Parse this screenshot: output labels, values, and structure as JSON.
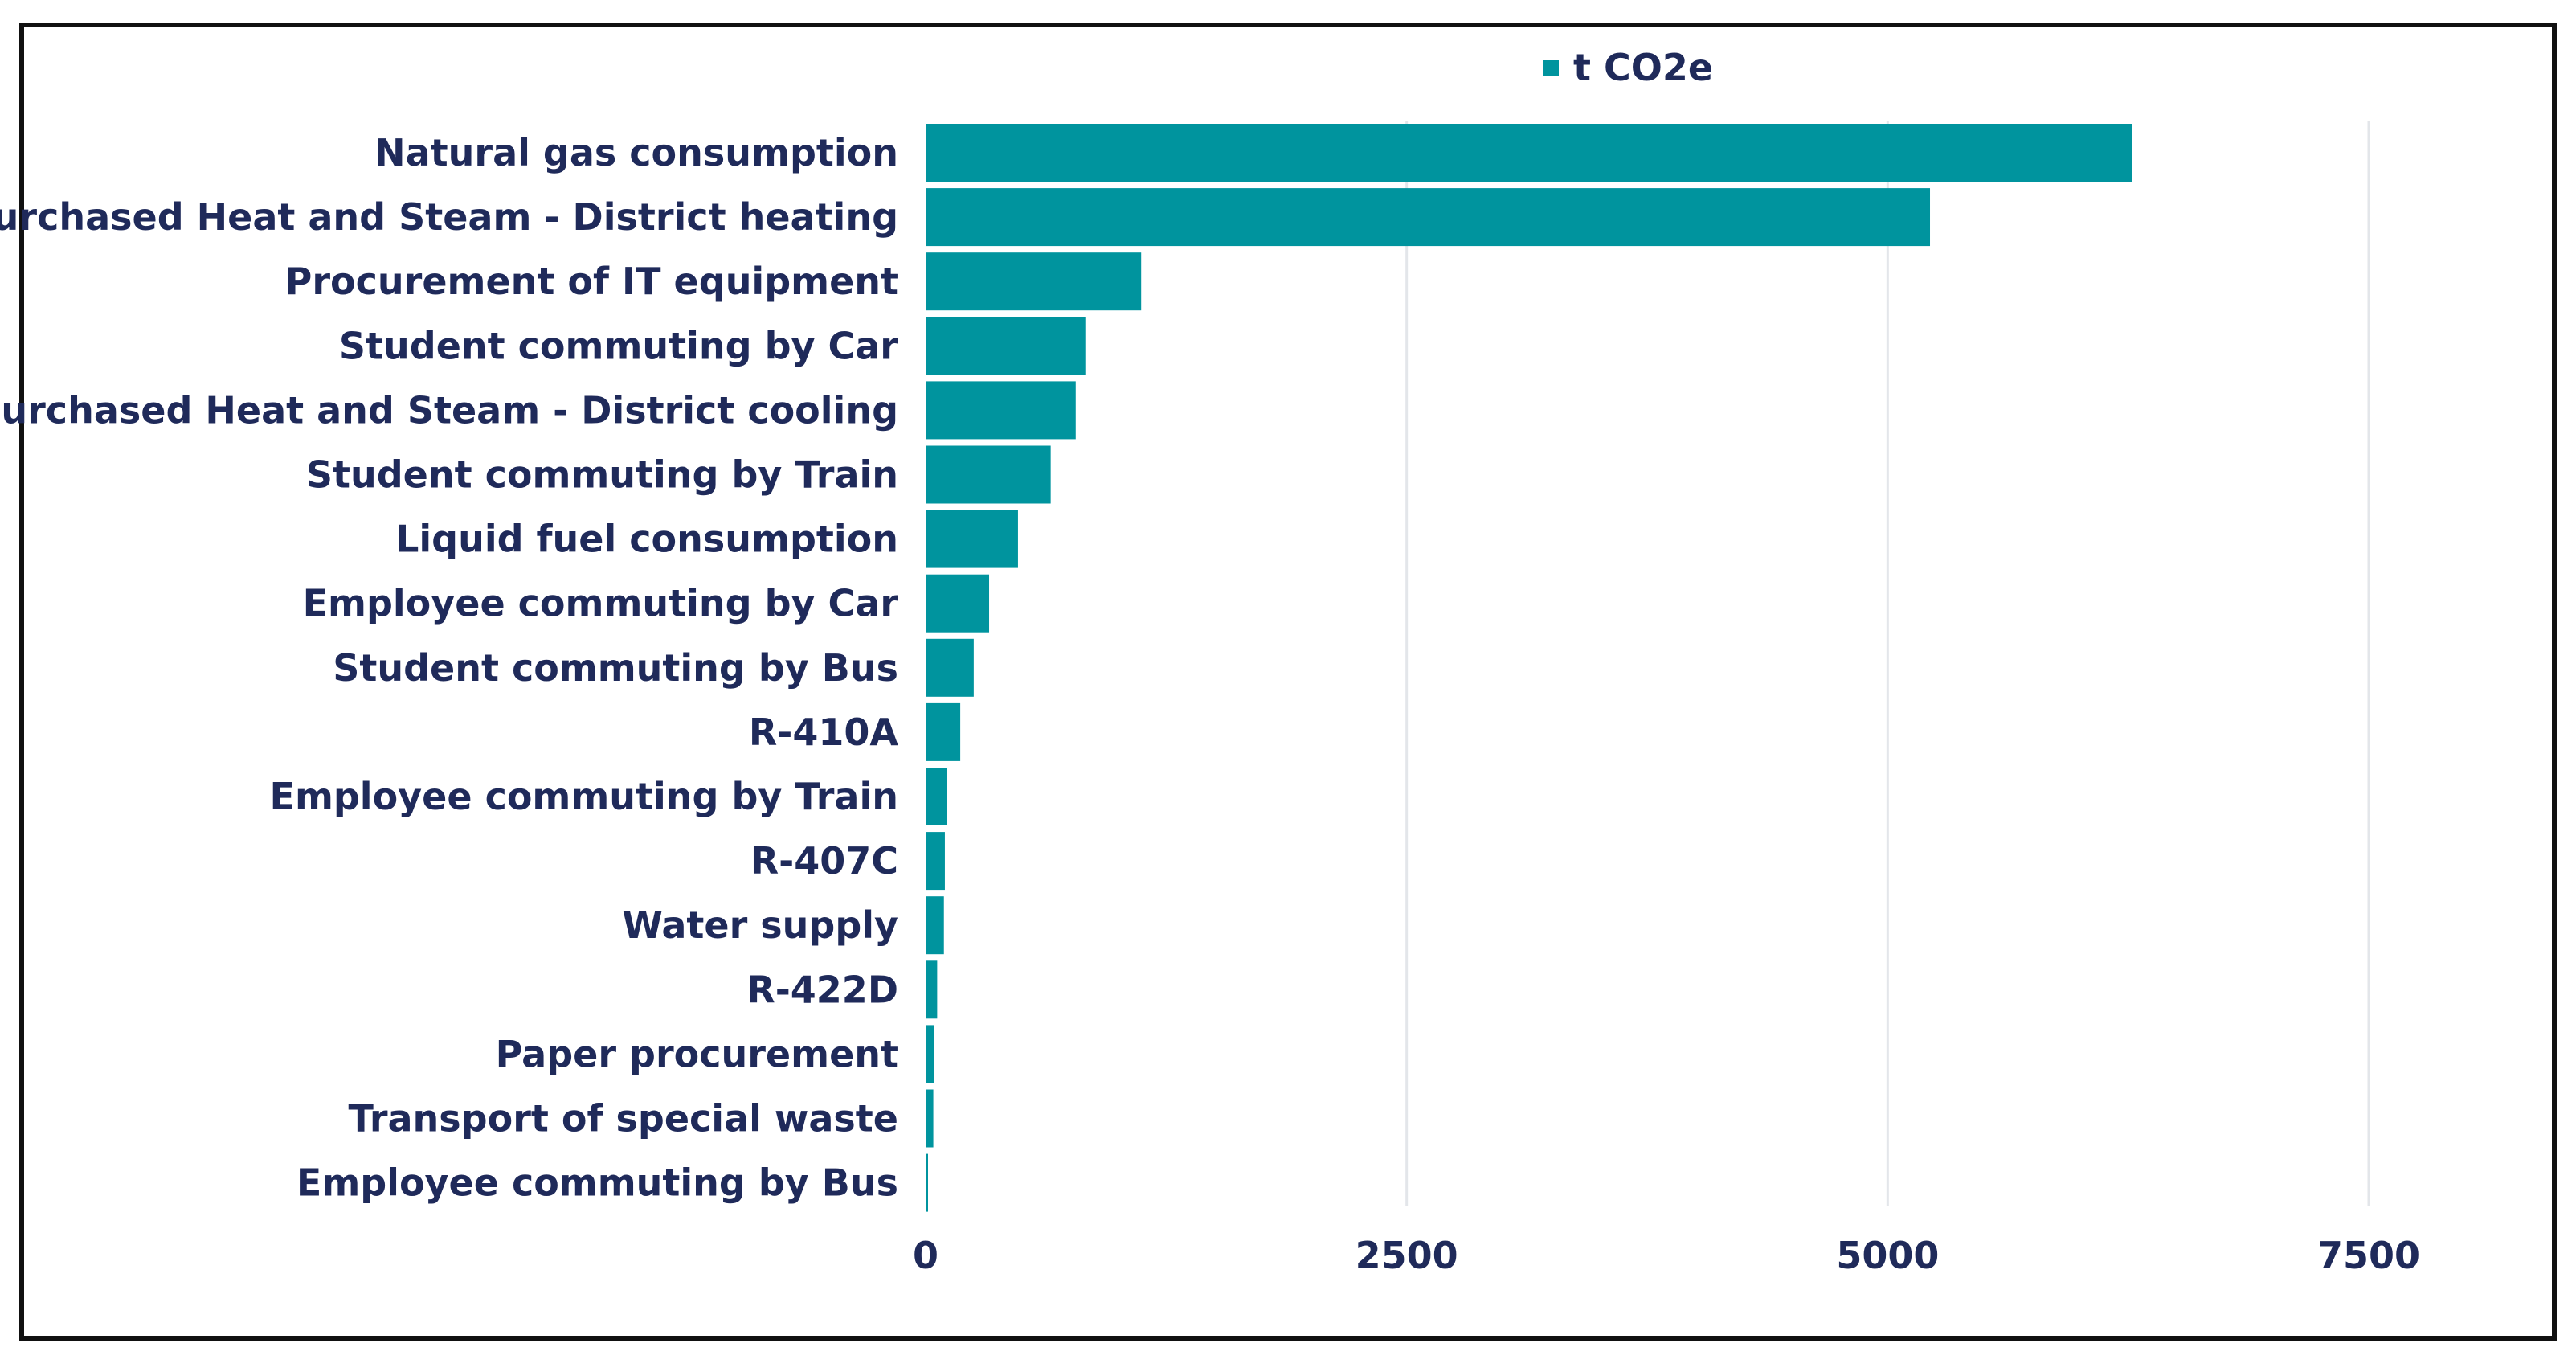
{
  "chart_data": {
    "type": "bar",
    "orientation": "horizontal",
    "title": "",
    "xlabel": "",
    "ylabel": "",
    "legend": {
      "entries": [
        "t CO2e"
      ],
      "placement": "top"
    },
    "xlim": [
      0,
      8000
    ],
    "xticks": [
      0,
      2500,
      5000,
      7500
    ],
    "grid": true,
    "color": "#00949e",
    "categories": [
      "Natural gas consumption",
      "Purchased Heat and Steam - District heating",
      "Procurement of IT equipment",
      "Student commuting by Car",
      "Purchased Heat and Steam - District cooling",
      "Student commuting by Train",
      "Liquid fuel consumption",
      "Employee commuting by Car",
      "Student commuting by Bus",
      "R-410A",
      "Employee commuting by Train",
      "R-407C",
      "Water supply",
      "R-422D",
      "Paper procurement",
      "Transport of special waste",
      "Employee commuting by Bus"
    ],
    "series": [
      {
        "name": "t CO2e",
        "values": [
          6270,
          5220,
          1120,
          830,
          780,
          650,
          480,
          330,
          250,
          180,
          110,
          100,
          95,
          60,
          45,
          40,
          5
        ]
      }
    ]
  }
}
